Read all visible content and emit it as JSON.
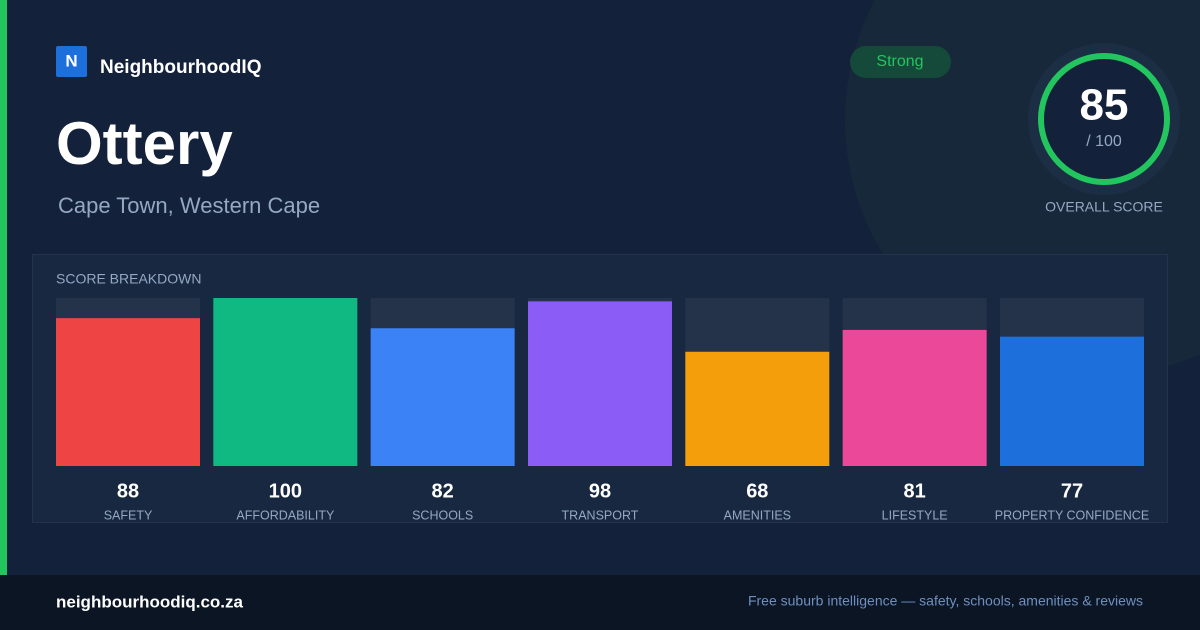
{
  "brand": {
    "logo": "N",
    "name": "NeighbourhoodIQ"
  },
  "title": "Ottery",
  "subtitle": "Cape Town, Western Cape",
  "badge": "Strong",
  "overall": {
    "score": 85,
    "max_label": "/ 100",
    "label": "OVERALL SCORE"
  },
  "breakdown": {
    "title": "SCORE BREAKDOWN",
    "items": [
      {
        "name": "SAFETY",
        "value": 88,
        "color": "#ef4444"
      },
      {
        "name": "AFFORDABILITY",
        "value": 100,
        "color": "#10b981"
      },
      {
        "name": "SCHOOLS",
        "value": 82,
        "color": "#3b82f6"
      },
      {
        "name": "TRANSPORT",
        "value": 98,
        "color": "#8b5cf6"
      },
      {
        "name": "AMENITIES",
        "value": 68,
        "color": "#f59e0b"
      },
      {
        "name": "LIFESTYLE",
        "value": 81,
        "color": "#ec4899"
      },
      {
        "name": "PROPERTY CONFIDENCE",
        "value": 77,
        "color": "#1d6fdb"
      }
    ]
  },
  "footer": {
    "site": "neighbourhoodiq.co.za",
    "tagline": "Free suburb intelligence — safety, schools, amenities & reviews"
  }
}
